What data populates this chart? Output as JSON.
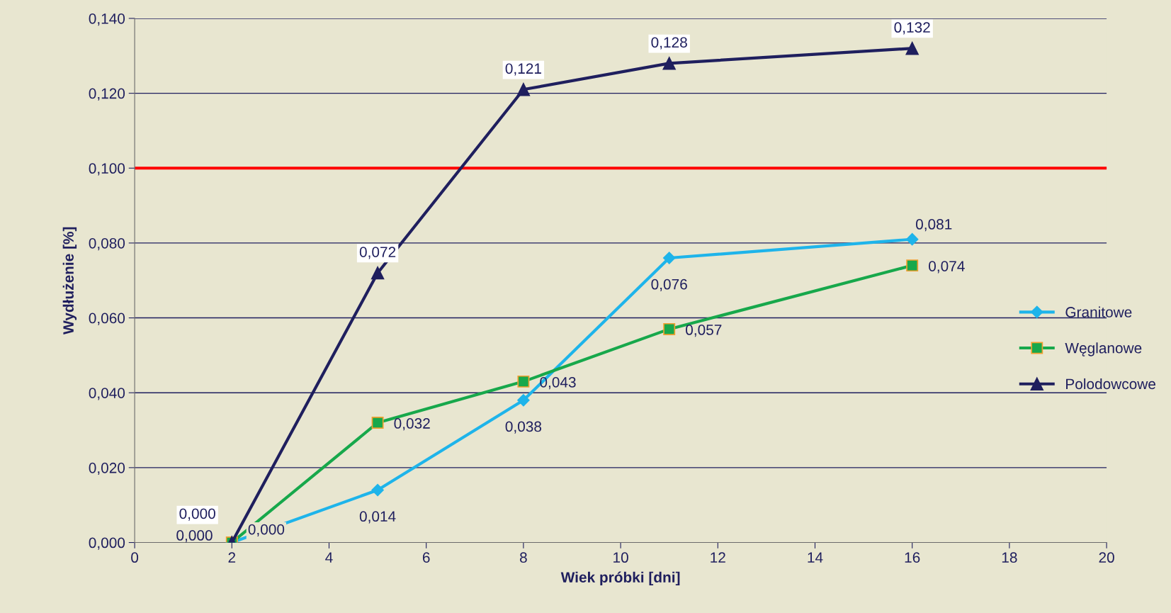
{
  "chart_data": {
    "type": "line",
    "xlabel": "Wiek próbki [dni]",
    "ylabel": "Wydłużenie [%]",
    "x": [
      2,
      5,
      8,
      11,
      16
    ],
    "series": [
      {
        "name": "Granitowe",
        "color": "#1eb4ea",
        "marker": "diamond",
        "values": [
          0.0,
          0.014,
          0.038,
          0.076,
          0.081
        ],
        "value_labels": [
          "0,000",
          "0,014",
          "0,038",
          "0,076",
          "0,081"
        ]
      },
      {
        "name": "Węglanowe",
        "color": "#17a84b",
        "marker": "square",
        "values": [
          0.0,
          0.032,
          0.043,
          0.057,
          0.074
        ],
        "value_labels": [
          "0,000",
          "0,032",
          "0,043",
          "0,057",
          "0,074"
        ]
      },
      {
        "name": "Polodowcowe",
        "color": "#1f1f5e",
        "marker": "triangle",
        "values": [
          0.0,
          0.072,
          0.121,
          0.128,
          0.132
        ],
        "value_labels": [
          "0,000",
          "0,072",
          "0,121",
          "0,128",
          "0,132"
        ]
      }
    ],
    "xlim": [
      0,
      20
    ],
    "xticks": [
      0,
      2,
      4,
      6,
      8,
      10,
      12,
      14,
      16,
      18,
      20
    ],
    "ylim": [
      0,
      0.14
    ],
    "yticks": [
      {
        "value": 0,
        "label": "0,000"
      },
      {
        "value": 0.02,
        "label": "0,020"
      },
      {
        "value": 0.04,
        "label": "0,040"
      },
      {
        "value": 0.06,
        "label": "0,060"
      },
      {
        "value": 0.08,
        "label": "0,080"
      },
      {
        "value": 0.1,
        "label": "0,100"
      },
      {
        "value": 0.12,
        "label": "0,120"
      },
      {
        "value": 0.14,
        "label": "0,140"
      }
    ],
    "ref_lines": [
      {
        "axis": "y",
        "value": 0.1,
        "color": "#ff0000"
      }
    ],
    "grid": "y",
    "legend": "lower right",
    "line_style": "solid"
  }
}
